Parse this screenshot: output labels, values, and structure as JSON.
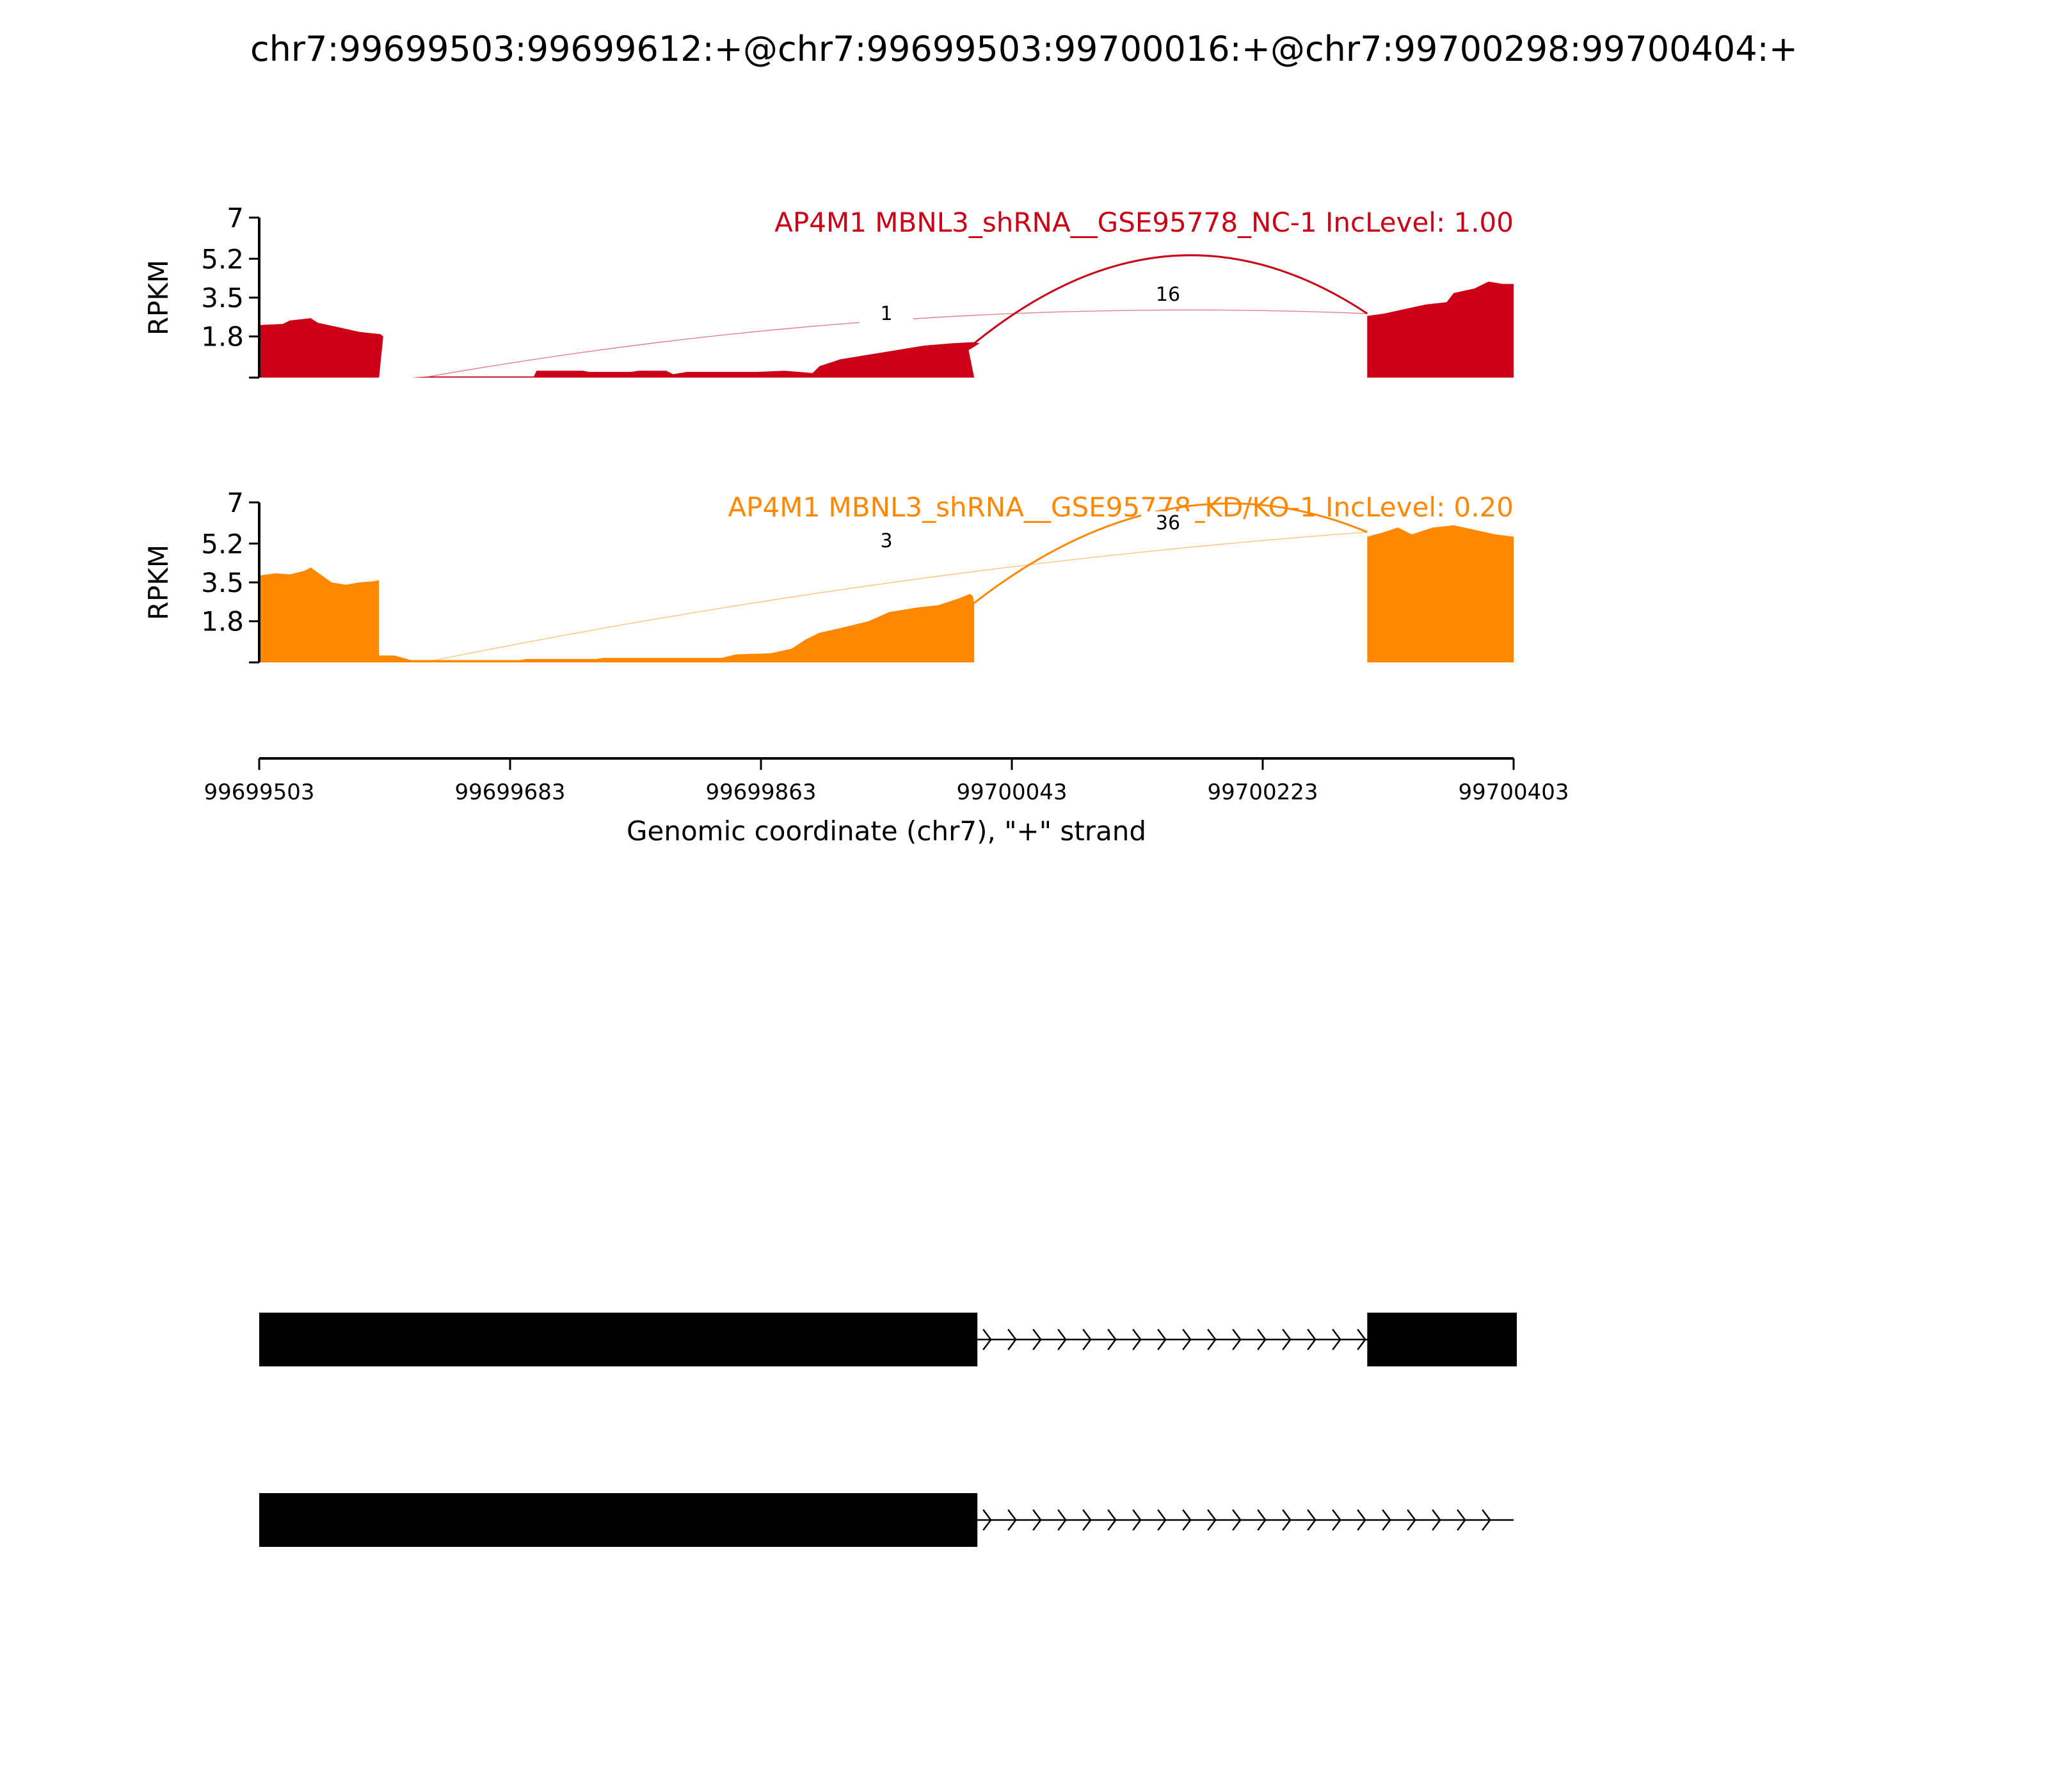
{
  "title": "chr7:99699503:99699612:+@chr7:99699503:99700016:+@chr7:99700298:99700404:+",
  "chart_data": {
    "type": "area",
    "x_axis": {
      "label": "Genomic coordinate (chr7), \"+\" strand",
      "ticks": [
        "99699503",
        "99699683",
        "99699863",
        "99700043",
        "99700223",
        "99700403"
      ],
      "range": [
        99699503,
        99700403
      ]
    },
    "y_axis": {
      "label": "RPKM",
      "ticks": [
        "7",
        "5.2",
        "3.5",
        "1.8"
      ],
      "range": [
        0,
        7
      ]
    },
    "tracks": [
      {
        "label": "AP4M1 MBNL3_shRNA__GSE95778_NC-1 IncLevel: 1.00",
        "color": "#cc0016",
        "coverage": [
          [
            99699503,
            2.3
          ],
          [
            99699520,
            2.35
          ],
          [
            99699525,
            2.5
          ],
          [
            99699540,
            2.6
          ],
          [
            99699545,
            2.4
          ],
          [
            99699560,
            2.2
          ],
          [
            99699575,
            2.0
          ],
          [
            99699590,
            1.9
          ],
          [
            99699592,
            1.8
          ],
          [
            99699589,
            0
          ],
          [
            99699612,
            0
          ],
          [
            99699625,
            0.05
          ],
          [
            99699700,
            0.05
          ],
          [
            99699702,
            0.3
          ],
          [
            99699735,
            0.3
          ],
          [
            99699740,
            0.25
          ],
          [
            99699770,
            0.25
          ],
          [
            99699775,
            0.3
          ],
          [
            99699795,
            0.3
          ],
          [
            99699800,
            0.15
          ],
          [
            99699810,
            0.25
          ],
          [
            99699860,
            0.25
          ],
          [
            99699880,
            0.3
          ],
          [
            99699900,
            0.2
          ],
          [
            99699905,
            0.5
          ],
          [
            99699920,
            0.8
          ],
          [
            99699940,
            1.0
          ],
          [
            99699960,
            1.2
          ],
          [
            99699980,
            1.4
          ],
          [
            99700000,
            1.5
          ],
          [
            99700015,
            1.55
          ],
          [
            99700020,
            1.5
          ],
          [
            99700012,
            1.2
          ],
          [
            99700016,
            0
          ],
          [
            99700298,
            0
          ],
          [
            99700298,
            2.7
          ],
          [
            99700310,
            2.8
          ],
          [
            99700325,
            3.0
          ],
          [
            99700340,
            3.2
          ],
          [
            99700355,
            3.3
          ],
          [
            99700360,
            3.7
          ],
          [
            99700375,
            3.9
          ],
          [
            99700385,
            4.2
          ],
          [
            99700395,
            4.1
          ],
          [
            99700403,
            4.1
          ]
        ],
        "junctions": [
          {
            "start": 99699612,
            "end": 99700298,
            "count": "1"
          },
          {
            "start": 99700016,
            "end": 99700298,
            "count": "16"
          }
        ]
      },
      {
        "label": "AP4M1 MBNL3_shRNA__GSE95778_KD/KO-1 IncLevel: 0.20",
        "color": "#ff8800",
        "coverage": [
          [
            99699503,
            3.8
          ],
          [
            99699515,
            3.9
          ],
          [
            99699525,
            3.85
          ],
          [
            99699535,
            4.0
          ],
          [
            99699540,
            4.15
          ],
          [
            99699548,
            3.8
          ],
          [
            99699555,
            3.5
          ],
          [
            99699565,
            3.4
          ],
          [
            99699575,
            3.5
          ],
          [
            99699585,
            3.55
          ],
          [
            99699589,
            3.6
          ],
          [
            99699589,
            0.3
          ],
          [
            99699600,
            0.3
          ],
          [
            99699612,
            0.1
          ],
          [
            99699690,
            0.1
          ],
          [
            99699695,
            0.15
          ],
          [
            99699745,
            0.15
          ],
          [
            99699750,
            0.2
          ],
          [
            99699775,
            0.2
          ],
          [
            99699785,
            0.2
          ],
          [
            99699835,
            0.2
          ],
          [
            99699845,
            0.35
          ],
          [
            99699870,
            0.4
          ],
          [
            99699885,
            0.6
          ],
          [
            99699895,
            1.0
          ],
          [
            99699905,
            1.3
          ],
          [
            99699920,
            1.5
          ],
          [
            99699940,
            1.8
          ],
          [
            99699955,
            2.2
          ],
          [
            99699975,
            2.4
          ],
          [
            99699990,
            2.5
          ],
          [
            99700005,
            2.8
          ],
          [
            99700013,
            3.0
          ],
          [
            99700015,
            2.9
          ],
          [
            99700016,
            2.6
          ],
          [
            99700016,
            0
          ],
          [
            99700298,
            0
          ],
          [
            99700298,
            5.5
          ],
          [
            99700310,
            5.7
          ],
          [
            99700320,
            5.9
          ],
          [
            99700330,
            5.6
          ],
          [
            99700345,
            5.9
          ],
          [
            99700360,
            6.0
          ],
          [
            99700375,
            5.8
          ],
          [
            99700390,
            5.6
          ],
          [
            99700403,
            5.5
          ]
        ],
        "junctions": [
          {
            "start": 99699612,
            "end": 99700298,
            "count": "3"
          },
          {
            "start": 99700016,
            "end": 99700298,
            "count": "36"
          }
        ]
      }
    ],
    "gene_models": [
      {
        "exons": [
          [
            99699503,
            99700016
          ],
          [
            99700298,
            99700403
          ]
        ]
      },
      {
        "exons": [
          [
            99699503,
            99700016
          ]
        ],
        "intron_to": 99700403
      }
    ]
  }
}
